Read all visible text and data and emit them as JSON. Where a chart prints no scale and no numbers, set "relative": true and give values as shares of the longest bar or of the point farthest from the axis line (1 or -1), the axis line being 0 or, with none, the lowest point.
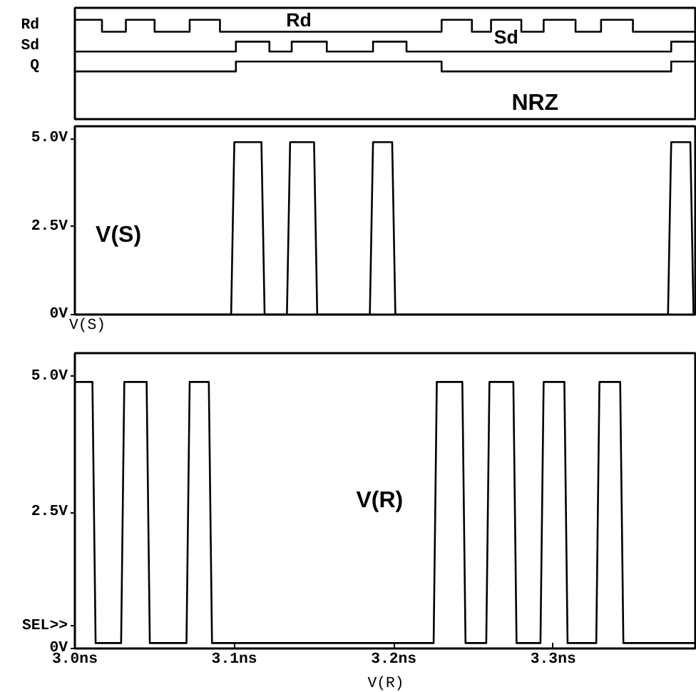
{
  "chart_data": [
    {
      "type": "step",
      "relative": true,
      "tick_labels": false,
      "grid": false,
      "xlim": [
        3.0,
        3.39
      ],
      "series": [
        {
          "name": "Rd",
          "color": "#000000",
          "x": [
            3.0,
            3.017,
            3.032,
            3.05,
            3.072,
            3.091,
            3.23,
            3.249,
            3.261,
            3.28,
            3.294,
            3.314,
            3.33,
            3.35,
            3.39
          ],
          "values": [
            1,
            0.88,
            1,
            0.88,
            1,
            0.88,
            1,
            0.88,
            1,
            0.88,
            1,
            0.88,
            1,
            0.88,
            0.88
          ]
        },
        {
          "name": "Sd",
          "color": "#000000",
          "x": [
            3.0,
            3.101,
            3.122,
            3.136,
            3.158,
            3.187,
            3.208,
            3.374,
            3.39
          ],
          "values": [
            0.68,
            0.78,
            0.68,
            0.78,
            0.68,
            0.78,
            0.68,
            0.78,
            0.78
          ]
        },
        {
          "name": "Q",
          "color": "#000000",
          "x": [
            3.0,
            3.101,
            3.23,
            3.374,
            3.39
          ],
          "values": [
            0.48,
            0.58,
            0.48,
            0.58,
            0.58
          ]
        }
      ],
      "annotations": [
        "Rd",
        "Sd",
        "NRZ"
      ]
    },
    {
      "type": "line",
      "tick_labels": "y",
      "grid": false,
      "legend": "bottom left",
      "xlim": [
        3.0,
        3.39
      ],
      "ylim": [
        0,
        5.35
      ],
      "yticks": [
        {
          "value": 0,
          "label": "0V"
        },
        {
          "value": 2.5,
          "label": "2.5V"
        },
        {
          "value": 5,
          "label": "5.0V"
        }
      ],
      "series": [
        {
          "name": "V(S)",
          "color": "#000000",
          "x": [
            3.0,
            3.098,
            3.1,
            3.117,
            3.119,
            3.133,
            3.135,
            3.15,
            3.152,
            3.185,
            3.187,
            3.199,
            3.201,
            3.372,
            3.374,
            3.386,
            3.388,
            3.39
          ],
          "values": [
            0,
            0,
            4.9,
            4.9,
            0,
            0,
            4.9,
            4.9,
            0,
            0,
            4.9,
            4.9,
            0,
            0,
            4.9,
            4.9,
            0,
            0
          ]
        }
      ],
      "annotations": [
        "V(S)"
      ]
    },
    {
      "type": "line",
      "grid": false,
      "legend": "bottom",
      "xlim": [
        3.0,
        3.39
      ],
      "ylim": [
        0,
        5.43
      ],
      "xticks": [
        {
          "value": 3.0,
          "label": "3.0ns"
        },
        {
          "value": 3.1,
          "label": "3.1ns"
        },
        {
          "value": 3.2,
          "label": "3.2ns"
        },
        {
          "value": 3.3,
          "label": "3.3ns"
        }
      ],
      "yticks": [
        {
          "value": 0,
          "label": "0V"
        },
        {
          "value": 2.5,
          "label": "2.5V"
        },
        {
          "value": 5,
          "label": "5.0V"
        }
      ],
      "series": [
        {
          "name": "V(R)",
          "color": "#000000",
          "x": [
            3.0,
            3.011,
            3.013,
            3.029,
            3.031,
            3.045,
            3.047,
            3.07,
            3.072,
            3.084,
            3.086,
            3.225,
            3.227,
            3.243,
            3.245,
            3.258,
            3.26,
            3.275,
            3.277,
            3.292,
            3.294,
            3.307,
            3.309,
            3.327,
            3.329,
            3.342,
            3.344,
            3.39
          ],
          "values": [
            4.9,
            4.9,
            0.1,
            0.1,
            4.9,
            4.9,
            0.1,
            0.1,
            4.9,
            4.9,
            0.1,
            0.1,
            4.9,
            4.9,
            0.1,
            0.1,
            4.9,
            4.9,
            0.1,
            0.1,
            4.9,
            4.9,
            0.1,
            0.1,
            4.9,
            4.9,
            0.1,
            0.1
          ]
        }
      ],
      "annotations": [
        "V(R)",
        "SEL>>"
      ]
    }
  ]
}
